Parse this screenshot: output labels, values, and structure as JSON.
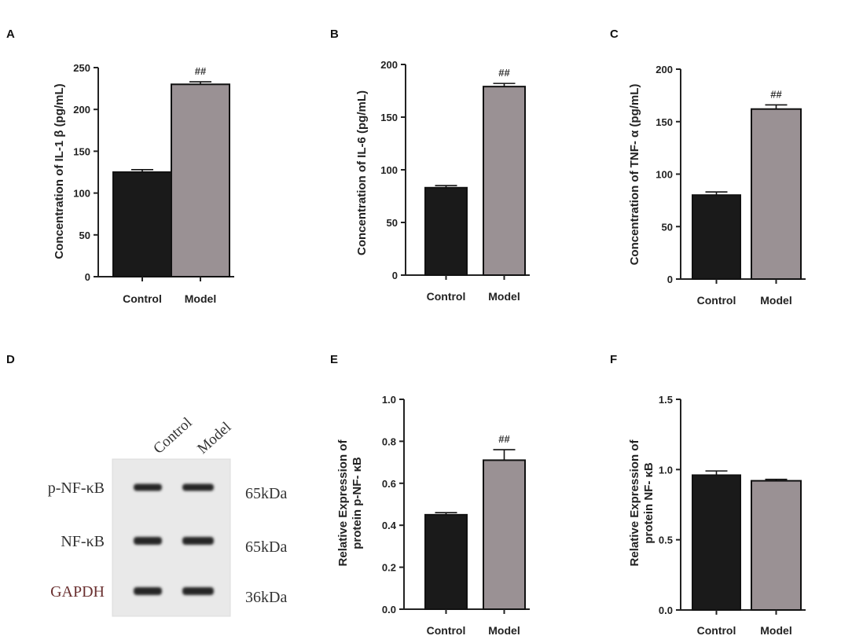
{
  "colors": {
    "control_bar": "#1a1a1a",
    "model_bar": "#9a9194",
    "axis": "#222222"
  },
  "chart_data": [
    {
      "panel": "A",
      "type": "bar",
      "categories": [
        "Control",
        "Model"
      ],
      "values": [
        125,
        230
      ],
      "errors": [
        3,
        3
      ],
      "annotations": [
        "",
        "##"
      ],
      "ylabel": "Concentration of IL-1 β (pg/mL)",
      "ylim": [
        0,
        250
      ],
      "yticks": [
        "0",
        "50",
        "100",
        "150",
        "200",
        "250"
      ]
    },
    {
      "panel": "B",
      "type": "bar",
      "categories": [
        "Control",
        "Model"
      ],
      "values": [
        83,
        179
      ],
      "errors": [
        2,
        3
      ],
      "annotations": [
        "",
        "##"
      ],
      "ylabel": "Concentration of IL-6 (pg/mL)",
      "ylim": [
        0,
        200
      ],
      "yticks": [
        "0",
        "50",
        "100",
        "150",
        "200"
      ]
    },
    {
      "panel": "C",
      "type": "bar",
      "categories": [
        "Control",
        "Model"
      ],
      "values": [
        80,
        162
      ],
      "errors": [
        3,
        4
      ],
      "annotations": [
        "",
        "##"
      ],
      "ylabel": "Concentration of TNF- α (pg/mL)",
      "ylim": [
        0,
        200
      ],
      "yticks": [
        "0",
        "50",
        "100",
        "150",
        "200"
      ]
    },
    {
      "panel": "E",
      "type": "bar",
      "categories": [
        "Control",
        "Model"
      ],
      "values": [
        0.45,
        0.71
      ],
      "errors": [
        0.01,
        0.05
      ],
      "annotations": [
        "",
        "##"
      ],
      "ylabel": [
        "Relative Expression of",
        "protein p-NF- κB"
      ],
      "ylim": [
        0,
        1.0
      ],
      "yticks": [
        "0.0",
        "0.2",
        "0.4",
        "0.6",
        "0.8",
        "1.0"
      ]
    },
    {
      "panel": "F",
      "type": "bar",
      "categories": [
        "Control",
        "Model"
      ],
      "values": [
        0.96,
        0.92
      ],
      "errors": [
        0.03,
        0.01
      ],
      "annotations": [
        "",
        ""
      ],
      "ylabel": [
        "Relative Expression of",
        "protein NF- κB"
      ],
      "ylim": [
        0,
        1.5
      ],
      "yticks": [
        "0.0",
        "0.5",
        "1.0",
        "1.5"
      ]
    }
  ],
  "blot": {
    "panel": "D",
    "lanes": [
      "Control",
      "Model"
    ],
    "rows": [
      {
        "protein": "p-NF-κB",
        "size": "65kDa"
      },
      {
        "protein": "NF-κB",
        "size": "65kDa"
      },
      {
        "protein": "GAPDH",
        "size": "36kDa"
      }
    ]
  }
}
